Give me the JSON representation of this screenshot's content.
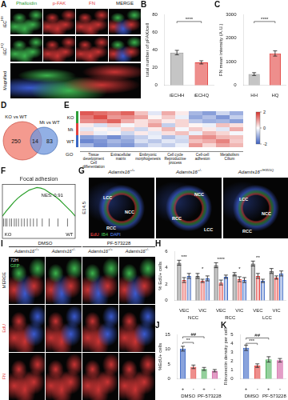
{
  "letters": [
    "A",
    "B",
    "C",
    "D",
    "E",
    "F",
    "G",
    "H",
    "I",
    "J",
    "K"
  ],
  "panel_a": {
    "columns": [
      "Phalloidin",
      "p-FAK",
      "FN",
      "MERGE"
    ],
    "rows": [
      {
        "base": "iEC",
        "sup": "HH"
      },
      {
        "base": "iEC",
        "sup": "HQ"
      },
      {
        "base": "Magnified"
      }
    ]
  },
  "venn": {
    "left": {
      "label": "KO vs WT",
      "value": 250
    },
    "overlap": 14,
    "right": {
      "label": "Mt vs WT",
      "value": 83
    }
  },
  "heatmap": {
    "groups": [
      "KO",
      "Mt",
      "WT"
    ],
    "cells": [
      [
        1.6,
        1.4,
        1.2,
        1.5,
        0.6,
        -0.3,
        0.8,
        0.2,
        -0.9,
        -1.2,
        -0.5,
        -1.0
      ],
      [
        1.3,
        1.7,
        1.0,
        1.1,
        0.9,
        0.1,
        0.5,
        -0.2,
        -1.1,
        -0.8,
        -1.3,
        -0.6
      ],
      [
        1.1,
        1.2,
        1.5,
        0.8,
        0.3,
        0.6,
        0.2,
        0.4,
        -0.7,
        -1.0,
        -0.9,
        -1.2
      ],
      [
        0.2,
        -0.4,
        0.5,
        -0.1,
        0.3,
        0.9,
        -0.6,
        0.4,
        0.1,
        -0.2,
        0.6,
        0.3
      ],
      [
        -0.3,
        0.1,
        -0.2,
        0.4,
        -0.5,
        0.2,
        0.7,
        -0.1,
        0.5,
        0.2,
        -0.3,
        0.8
      ],
      [
        0.4,
        -0.2,
        0.1,
        -0.5,
        0.2,
        -0.3,
        0.3,
        0.6,
        -0.2,
        0.7,
        0.4,
        -0.1
      ],
      [
        -1.2,
        -1.0,
        -1.4,
        -0.9,
        -0.6,
        -0.2,
        -0.8,
        -0.4,
        0.9,
        1.1,
        0.7,
        0.6
      ],
      [
        -1.5,
        -1.3,
        -0.9,
        -1.1,
        -0.4,
        -0.7,
        -0.3,
        -0.5,
        0.6,
        0.8,
        1.2,
        0.5
      ],
      [
        -0.9,
        -1.4,
        -1.1,
        -1.3,
        -0.8,
        -0.4,
        -0.6,
        -0.2,
        1.0,
        0.4,
        0.9,
        0.7
      ]
    ],
    "colorbar": {
      "range": [
        -2,
        2
      ],
      "ticks": [
        -2,
        0,
        2
      ]
    },
    "term_label": "GO",
    "terms": [
      "Tissue development Cell differentiation",
      "Extracellular matrix",
      "Embryonic morphogenesis",
      "Cell cycle Reproductive process",
      "Cell-cell adhesion",
      "Metabolism Cilium"
    ]
  },
  "panel_g": {
    "stage": "E14.5",
    "columns": [
      {
        "base": "Adamts16",
        "sup": "+/+"
      },
      {
        "base": "Adamts16",
        "sup": "+/-"
      },
      {
        "base": "Adamts16",
        "sup": "+/H355Q"
      }
    ],
    "regions": [
      [
        "LCC",
        "NCC",
        "RCC"
      ],
      [
        "NCC",
        "RCC",
        "LCC"
      ],
      [
        "LCC",
        "NCC",
        "RCC"
      ]
    ],
    "stains": [
      {
        "text": "EdU",
        "color": "#ff4a4a"
      },
      {
        "text": "IB4",
        "color": "#4cd05a"
      },
      {
        "text": "DAPI",
        "color": "#5a8cff"
      }
    ]
  },
  "panel_i": {
    "time": "72H",
    "treatments": [
      "DMSO",
      "PF-573228"
    ],
    "columns": [
      {
        "base": "Adamts16",
        "sup": "+/+"
      },
      {
        "base": "Adamts16",
        "sup": "+/-"
      },
      {
        "base": "Adamts16",
        "sup": "+/+"
      },
      {
        "base": "Adamts16",
        "sup": "+/-"
      }
    ],
    "rows": [
      "MERGE",
      "EdU",
      "FN"
    ],
    "overlay": "GFP"
  },
  "chart_data": [
    {
      "type": "bar",
      "categories": [
        "iECHH",
        "iECHQ"
      ],
      "values": [
        37,
        26
      ],
      "errors": [
        2.5,
        1.8
      ],
      "colors": [
        "#9e9e9e",
        "#e2433f"
      ],
      "y_label": "total number of pFAK/cell",
      "ylim": [
        0,
        80
      ],
      "yticks": [
        0,
        20,
        40,
        60,
        80
      ],
      "grid": false,
      "annotations": [
        {
          "text": "****",
          "x": [
            0,
            1
          ],
          "y": 72
        }
      ]
    },
    {
      "type": "bar",
      "categories": [
        "HH",
        "HQ"
      ],
      "values": [
        480,
        1350
      ],
      "errors": [
        60,
        110
      ],
      "colors": [
        "#9e9e9e",
        "#e2433f"
      ],
      "y_label": "FN mean intensity (A.U.)",
      "ylim": [
        0,
        3000
      ],
      "yticks": [
        0,
        1000,
        2000,
        3000
      ],
      "grid": false,
      "annotations": [
        {
          "text": "****",
          "x": [
            0,
            1
          ],
          "y": 2700
        }
      ]
    },
    {
      "type": "line",
      "title": "Focal adhesion",
      "color": "#2ca02c",
      "x": [
        0,
        1,
        2,
        3,
        4,
        5,
        6,
        7,
        8,
        9,
        10,
        11,
        12,
        13,
        14,
        15,
        16,
        17,
        18,
        19
      ],
      "values": [
        0,
        0.08,
        0.15,
        0.22,
        0.28,
        0.33,
        0.37,
        0.41,
        0.43,
        0.45,
        0.44,
        0.42,
        0.38,
        0.34,
        0.3,
        0.25,
        0.19,
        0.13,
        0.07,
        0
      ],
      "hits": [
        0.3,
        0.8,
        1.2,
        1.9,
        2.4,
        3.1,
        3.6,
        4.2,
        5.0,
        5.7,
        6.5,
        7.3,
        8.1,
        9.0,
        10.4,
        12.2,
        14.5,
        17.0
      ],
      "xlim": [
        0,
        19
      ],
      "ylim": [
        -0.35,
        0.5
      ],
      "tick_labels": false,
      "annotations": [
        {
          "text": "NES: 0.91",
          "x": 13,
          "y": 0.32
        },
        {
          "text": "KO",
          "x": 1.5,
          "y": -0.29
        },
        {
          "text": "WT",
          "x": 17.5,
          "y": -0.29
        }
      ]
    },
    {
      "type": "bar",
      "categories": [
        "VEC",
        "VIC",
        "VEC",
        "VIC",
        "VEC",
        "VIC"
      ],
      "groups": [
        {
          "label": "NCC",
          "from": 0,
          "to": 1
        },
        {
          "label": "RCC",
          "from": 2,
          "to": 3
        },
        {
          "label": "LCC",
          "from": 4,
          "to": 5
        }
      ],
      "series": [
        {
          "color": "#555555",
          "values": [
            4.6,
            3.0,
            4.3,
            3.2,
            4.5,
            3.6
          ],
          "errors": [
            0.3,
            0.3,
            0.3,
            0.2,
            0.3,
            0.3
          ]
        },
        {
          "color": "#e2433f",
          "values": [
            2.5,
            2.4,
            2.2,
            2.6,
            3.0,
            2.8
          ],
          "errors": [
            0.3,
            0.2,
            0.3,
            0.3,
            0.3,
            0.2
          ]
        },
        {
          "color": "#3a66c4",
          "values": [
            3.0,
            2.7,
            2.9,
            2.5,
            2.4,
            3.3
          ],
          "errors": [
            0.3,
            0.3,
            0.2,
            0.3,
            0.2,
            0.3
          ]
        }
      ],
      "y_label": "% EdU+ cells",
      "ylim": [
        0,
        6
      ],
      "yticks": [
        0,
        2,
        4,
        6
      ],
      "grid": false,
      "annotations": [
        {
          "text": "***",
          "x": 0,
          "y": 5.3
        },
        {
          "text": "*",
          "x": 1,
          "y": 3.8
        },
        {
          "text": "****",
          "x": 2,
          "y": 5.0
        },
        {
          "text": "*",
          "x": 3,
          "y": 3.8
        },
        {
          "text": "**",
          "x": 4,
          "y": 5.2
        }
      ]
    },
    {
      "type": "bar",
      "categories": [
        "+",
        "-",
        "+",
        "-"
      ],
      "groups": [
        {
          "label": "DMSO",
          "from": 0,
          "to": 1
        },
        {
          "label": "PF-573228",
          "from": 2,
          "to": 3
        }
      ],
      "values": [
        10.2,
        4.1,
        3.4,
        2.8
      ],
      "errors": [
        0.8,
        0.6,
        0.5,
        0.4
      ],
      "colors": [
        "#3a66c4",
        "#e2433f",
        "#4cb05a",
        "#d05aa0"
      ],
      "y_label": "%EdU+ cells",
      "ylim": [
        0,
        15
      ],
      "yticks": [
        0,
        5,
        10,
        15
      ],
      "grid": false,
      "annotations": [
        {
          "text": "**",
          "x": [
            0,
            1
          ],
          "y": 12.3
        },
        {
          "text": "##",
          "x": [
            0,
            2
          ],
          "y": 14.2
        }
      ]
    },
    {
      "type": "bar",
      "categories": [
        "+",
        "-",
        "+",
        "-"
      ],
      "groups": [
        {
          "label": "DMSO",
          "from": 0,
          "to": 1
        },
        {
          "label": "PF-573228",
          "from": 2,
          "to": 3
        }
      ],
      "values": [
        3.5,
        1.5,
        2.2,
        2.1
      ],
      "errors": [
        0.3,
        0.2,
        0.3,
        0.2
      ],
      "colors": [
        "#3a66c4",
        "#e2433f",
        "#4cb05a",
        "#d05aa0"
      ],
      "y_label": "Fibronectin density per cell",
      "ylim": [
        0,
        5
      ],
      "yticks": [
        0,
        1,
        2,
        3,
        4,
        5
      ],
      "grid": false,
      "annotations": [
        {
          "text": "***",
          "x": [
            0,
            1
          ],
          "y": 4.0
        },
        {
          "text": "##",
          "x": [
            0,
            2
          ],
          "y": 4.6
        }
      ]
    }
  ]
}
